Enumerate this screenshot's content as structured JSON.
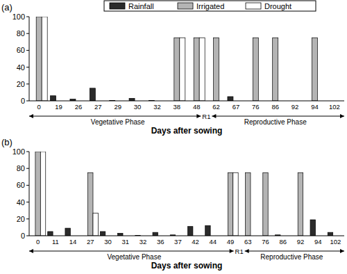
{
  "chart_data": [
    {
      "type": "bar",
      "title": "(a)",
      "x_label": "Days after sowing",
      "categories": [
        "0",
        "19",
        "26",
        "27",
        "29",
        "30",
        "32",
        "38",
        "48",
        "62",
        "67",
        "76",
        "86",
        "92",
        "94",
        "102"
      ],
      "series": [
        {
          "name": "Rainfall",
          "color": "#2b2b2b",
          "values": [
            0,
            6,
            2,
            15,
            0.5,
            3,
            0.5,
            0,
            0,
            0,
            5,
            0,
            0,
            0,
            0,
            0
          ]
        },
        {
          "name": "Irrigated",
          "color": "#b4b4b4",
          "values": [
            100,
            0,
            0,
            0,
            0,
            0,
            0,
            75,
            75,
            75,
            0,
            75,
            75,
            0,
            75,
            0
          ]
        },
        {
          "name": "Drought",
          "color": "#ffffff",
          "values": [
            100,
            0,
            0,
            0,
            0,
            0,
            0,
            75,
            75,
            0,
            0,
            0,
            0,
            0,
            0,
            0
          ]
        }
      ],
      "ylim": [
        0,
        100
      ],
      "yticks": [
        0,
        20,
        40,
        60,
        80,
        100
      ],
      "grid": false,
      "legend": "top",
      "phases": [
        {
          "label": "Vegetative Phase",
          "start": "0",
          "end": "48"
        },
        {
          "label": "Reproductive Phase",
          "start": "62",
          "end": "102"
        }
      ],
      "divider": "R1"
    },
    {
      "type": "bar",
      "title": "(b)",
      "x_label": "Days after sowing",
      "categories": [
        "0",
        "11",
        "14",
        "27",
        "30",
        "31",
        "32",
        "36",
        "37",
        "42",
        "44",
        "49",
        "63",
        "76",
        "86",
        "92",
        "94",
        "102"
      ],
      "series": [
        {
          "color": "#2b2b2b",
          "values": [
            0,
            5,
            9,
            0,
            5,
            3,
            0.5,
            4,
            1,
            11,
            12,
            0,
            0,
            0,
            1,
            0,
            19,
            4
          ]
        },
        {
          "color": "#b4b4b4",
          "values": [
            100,
            0,
            0,
            75,
            0,
            0,
            0,
            0,
            0,
            0,
            0,
            75,
            75,
            75,
            0,
            75,
            0,
            0
          ]
        },
        {
          "color": "#ffffff",
          "values": [
            100,
            0,
            0,
            27,
            0,
            0,
            0,
            0,
            0,
            0,
            0,
            75,
            0,
            0,
            0,
            0,
            0,
            0
          ]
        }
      ],
      "ylim": [
        0,
        100
      ],
      "yticks": [
        0,
        20,
        40,
        60,
        80,
        100
      ],
      "grid": false,
      "phases": [
        {
          "label": "Vegetative Phase",
          "start": "0",
          "end": "49"
        },
        {
          "label": "Reproductive Phase",
          "start": "63",
          "end": "102"
        }
      ],
      "divider": "R1"
    }
  ]
}
